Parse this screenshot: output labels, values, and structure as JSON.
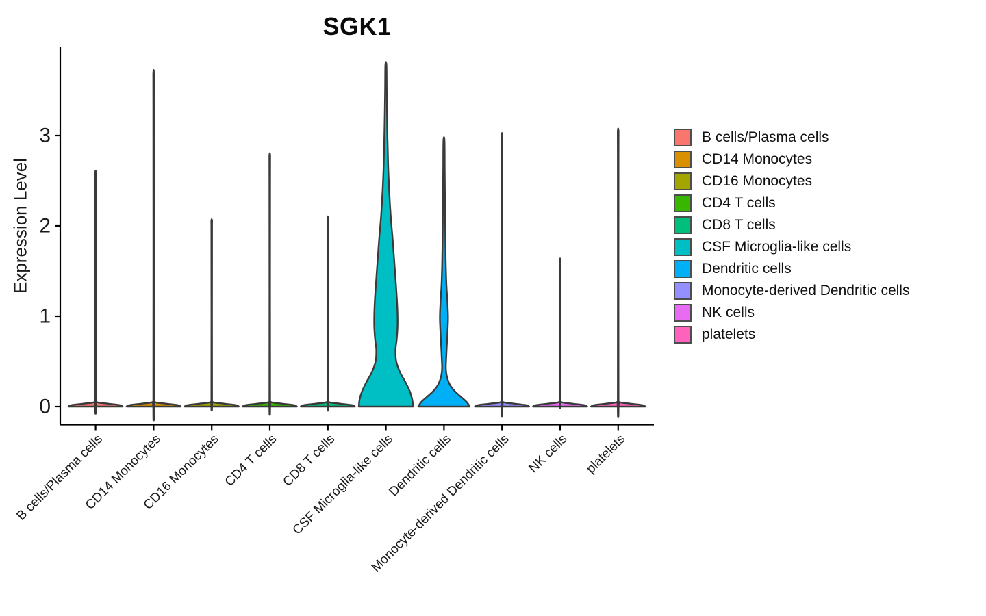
{
  "chart_data": {
    "type": "violin",
    "title": "SGK1",
    "ylabel": "Expression Level",
    "xlabel": "",
    "yticks": [
      0,
      1,
      2,
      3
    ],
    "ylim": [
      0,
      3.97
    ],
    "grid": false,
    "panel_background": "#ffffff",
    "legend_position": "right",
    "axis_color": "#000000",
    "text_color": "#1a1a1a",
    "outline_color": "#3a3a3a",
    "categories": [
      "B cells/Plasma cells",
      "CD14 Monocytes",
      "CD16 Monocytes",
      "CD4 T cells",
      "CD8 T cells",
      "CSF Microglia-like cells",
      "Dendritic cells",
      "Monocyte-derived Dendritic cells",
      "NK cells",
      "platelets"
    ],
    "series": [
      {
        "name": "B cells/Plasma cells",
        "color": "#F8766D",
        "max_expression": 2.58,
        "shape": "spike"
      },
      {
        "name": "CD14 Monocytes",
        "color": "#D89000",
        "max_expression": 3.68,
        "shape": "spike"
      },
      {
        "name": "CD16 Monocytes",
        "color": "#A3A500",
        "max_expression": 2.05,
        "shape": "spike"
      },
      {
        "name": "CD4 T cells",
        "color": "#39B600",
        "max_expression": 2.77,
        "shape": "spike"
      },
      {
        "name": "CD8 T cells",
        "color": "#00BF7D",
        "max_expression": 2.08,
        "shape": "spike"
      },
      {
        "name": "CSF Microglia-like cells",
        "color": "#00BFC4",
        "max_expression": 3.78,
        "shape": "violin",
        "profile": [
          [
            3.78,
            0.02
          ],
          [
            3.5,
            0.03
          ],
          [
            3.1,
            0.05
          ],
          [
            2.7,
            0.08
          ],
          [
            2.4,
            0.12
          ],
          [
            2.1,
            0.18
          ],
          [
            1.85,
            0.25
          ],
          [
            1.6,
            0.31
          ],
          [
            1.35,
            0.37
          ],
          [
            1.1,
            0.42
          ],
          [
            0.9,
            0.43
          ],
          [
            0.75,
            0.4
          ],
          [
            0.63,
            0.355
          ],
          [
            0.5,
            0.38
          ],
          [
            0.38,
            0.52
          ],
          [
            0.27,
            0.72
          ],
          [
            0.17,
            0.88
          ],
          [
            0.08,
            0.97
          ],
          [
            0,
            1.0
          ]
        ]
      },
      {
        "name": "Dendritic cells",
        "color": "#00B0F6",
        "max_expression": 2.94,
        "shape": "violin",
        "profile": [
          [
            2.94,
            0.02
          ],
          [
            2.6,
            0.028
          ],
          [
            2.2,
            0.04
          ],
          [
            1.9,
            0.05
          ],
          [
            1.6,
            0.065
          ],
          [
            1.35,
            0.09
          ],
          [
            1.15,
            0.13
          ],
          [
            0.98,
            0.15
          ],
          [
            0.82,
            0.13
          ],
          [
            0.65,
            0.1
          ],
          [
            0.52,
            0.08
          ],
          [
            0.42,
            0.07
          ],
          [
            0.33,
            0.11
          ],
          [
            0.24,
            0.22
          ],
          [
            0.17,
            0.4
          ],
          [
            0.11,
            0.62
          ],
          [
            0.05,
            0.84
          ],
          [
            0,
            0.95
          ]
        ]
      },
      {
        "name": "Monocyte-derived Dendritic cells",
        "color": "#9590FF",
        "max_expression": 2.99,
        "shape": "spike"
      },
      {
        "name": "NK cells",
        "color": "#E76BF3",
        "max_expression": 1.62,
        "shape": "spike"
      },
      {
        "name": "platelets",
        "color": "#FF62BC",
        "max_expression": 3.04,
        "shape": "spike"
      }
    ]
  }
}
